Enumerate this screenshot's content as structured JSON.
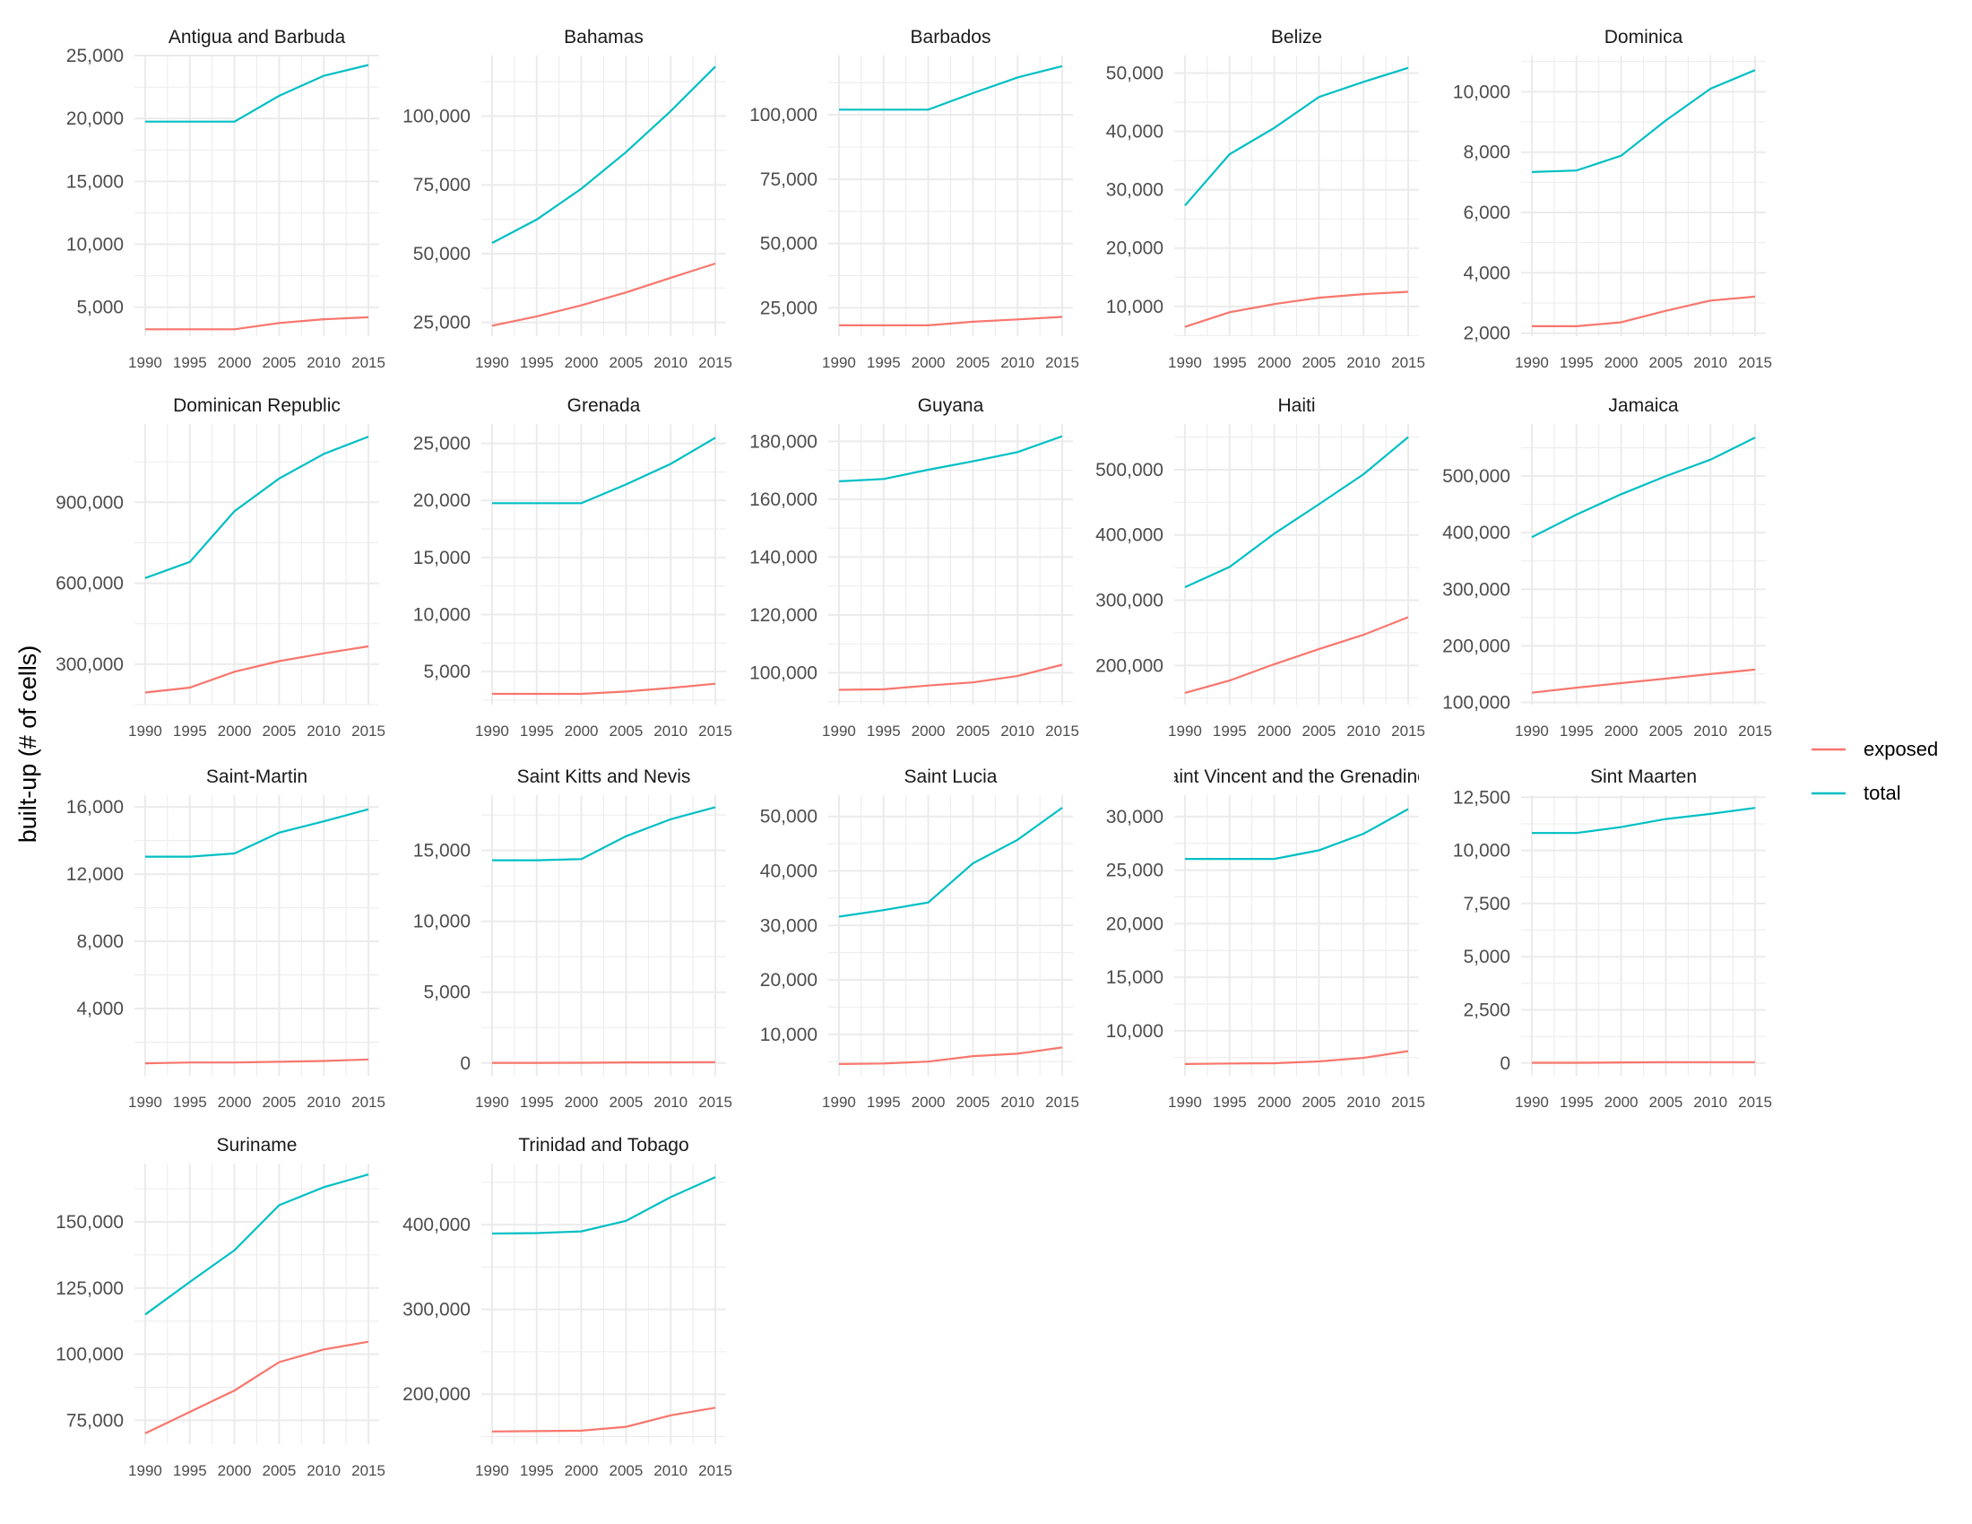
{
  "chart_data": {
    "type": "line",
    "ylabel": "built-up (# of cells)",
    "x": [
      1990,
      1995,
      2000,
      2005,
      2010,
      2015
    ],
    "x_ticks": [
      "1990",
      "1995",
      "2000",
      "2005",
      "2010",
      "2015"
    ],
    "legend": {
      "placement": "right",
      "entries": [
        {
          "name": "exposed",
          "color": "#F8766D"
        },
        {
          "name": "total",
          "color": "#00BFC4"
        }
      ]
    },
    "panels": [
      {
        "title": "Antigua and Barbuda",
        "ylim": [
          2700,
          25000
        ],
        "y_ticks": [
          5000,
          10000,
          15000,
          20000,
          25000
        ],
        "y_tick_labels": [
          "5,000",
          "10,000",
          "15,000",
          "20,000",
          "25,000"
        ],
        "series": [
          {
            "name": "exposed",
            "values": [
              3250,
              3250,
              3250,
              3750,
              4050,
              4200
            ]
          },
          {
            "name": "total",
            "values": [
              19750,
              19750,
              19750,
              21800,
              23400,
              24250
            ]
          }
        ]
      },
      {
        "title": "Bahamas",
        "ylim": [
          20000,
          122000
        ],
        "y_ticks": [
          25000,
          50000,
          75000,
          100000
        ],
        "y_tick_labels": [
          "25,000",
          "50,000",
          "75,000",
          "100,000"
        ],
        "series": [
          {
            "name": "exposed",
            "values": [
              23800,
              27200,
              31200,
              35900,
              41200,
              46400
            ]
          },
          {
            "name": "total",
            "values": [
              53900,
              62400,
              73600,
              86900,
              101800,
              118000
            ]
          }
        ]
      },
      {
        "title": "Barbados",
        "ylim": [
          14000,
          123000
        ],
        "y_ticks": [
          25000,
          50000,
          75000,
          100000
        ],
        "y_tick_labels": [
          "25,000",
          "50,000",
          "75,000",
          "100,000"
        ],
        "series": [
          {
            "name": "exposed",
            "values": [
              18200,
              18200,
              18200,
              19600,
              20500,
              21500
            ]
          },
          {
            "name": "total",
            "values": [
              102000,
              102000,
              102000,
              108400,
              114500,
              118900
            ]
          }
        ]
      },
      {
        "title": "Belize",
        "ylim": [
          4900,
          53000
        ],
        "y_ticks": [
          10000,
          20000,
          30000,
          40000,
          50000
        ],
        "y_tick_labels": [
          "10,000",
          "20,000",
          "30,000",
          "40,000",
          "50,000"
        ],
        "series": [
          {
            "name": "exposed",
            "values": [
              6500,
              9000,
              10400,
              11500,
              12100,
              12500
            ]
          },
          {
            "name": "total",
            "values": [
              27300,
              36100,
              40600,
              45900,
              48500,
              50900
            ]
          }
        ]
      },
      {
        "title": "Dominica",
        "ylim": [
          1900,
          11200
        ],
        "y_ticks": [
          2000,
          4000,
          6000,
          8000,
          10000
        ],
        "y_tick_labels": [
          "2,000",
          "4,000",
          "6,000",
          "8,000",
          "10,000"
        ],
        "series": [
          {
            "name": "exposed",
            "values": [
              2230,
              2230,
              2360,
              2740,
              3080,
              3210
            ]
          },
          {
            "name": "total",
            "values": [
              7340,
              7390,
              7880,
              9050,
              10100,
              10720
            ]
          }
        ]
      },
      {
        "title": "Dominican Republic",
        "ylim": [
          150000,
          1190000
        ],
        "y_ticks": [
          300000,
          600000,
          900000
        ],
        "y_tick_labels": [
          "300,000",
          "600,000",
          "900,000"
        ],
        "series": [
          {
            "name": "exposed",
            "values": [
              195000,
              213000,
              272000,
              311000,
              340000,
              366000
            ]
          },
          {
            "name": "total",
            "values": [
              619000,
              679000,
              867000,
              988000,
              1079000,
              1143000
            ]
          }
        ]
      },
      {
        "title": "Grenada",
        "ylim": [
          2100,
          26700
        ],
        "y_ticks": [
          5000,
          10000,
          15000,
          20000,
          25000
        ],
        "y_tick_labels": [
          "5,000",
          "10,000",
          "15,000",
          "20,000",
          "25,000"
        ],
        "series": [
          {
            "name": "exposed",
            "values": [
              3040,
              3040,
              3040,
              3250,
              3560,
              3930
            ]
          },
          {
            "name": "total",
            "values": [
              19760,
              19760,
              19760,
              21400,
              23200,
              25500
            ]
          }
        ]
      },
      {
        "title": "Guyana",
        "ylim": [
          89000,
          186000
        ],
        "y_ticks": [
          100000,
          120000,
          140000,
          160000,
          180000
        ],
        "y_tick_labels": [
          "100,000",
          "120,000",
          "140,000",
          "160,000",
          "180,000"
        ],
        "series": [
          {
            "name": "exposed",
            "values": [
              94100,
              94300,
              95600,
              96700,
              98900,
              102800
            ]
          },
          {
            "name": "total",
            "values": [
              166200,
              167000,
              170200,
              173100,
              176300,
              181800
            ]
          }
        ]
      },
      {
        "title": "Haiti",
        "ylim": [
          140000,
          570000
        ],
        "y_ticks": [
          200000,
          300000,
          400000,
          500000
        ],
        "y_tick_labels": [
          "200,000",
          "300,000",
          "400,000",
          "500,000"
        ],
        "series": [
          {
            "name": "exposed",
            "values": [
              158000,
              177000,
              202000,
              225000,
              247000,
              274000
            ]
          },
          {
            "name": "total",
            "values": [
              320000,
              351000,
              402000,
              447000,
              493000,
              550000
            ]
          }
        ]
      },
      {
        "title": "Jamaica",
        "ylim": [
          96000,
          592000
        ],
        "y_ticks": [
          100000,
          200000,
          300000,
          400000,
          500000
        ],
        "y_tick_labels": [
          "100,000",
          "200,000",
          "300,000",
          "400,000",
          "500,000"
        ],
        "series": [
          {
            "name": "exposed",
            "values": [
              117000,
              126000,
              134000,
              142000,
              150000,
              158000
            ]
          },
          {
            "name": "total",
            "values": [
              392000,
              432000,
              468000,
              500000,
              529000,
              568000
            ]
          }
        ]
      },
      {
        "title": "Saint-Martin",
        "ylim": [
          0,
          16700
        ],
        "y_ticks": [
          4000,
          8000,
          12000,
          16000
        ],
        "y_tick_labels": [
          "4,000",
          "8,000",
          "12,000",
          "16,000"
        ],
        "series": [
          {
            "name": "exposed",
            "values": [
              740,
              790,
              790,
              830,
              880,
              970
            ]
          },
          {
            "name": "total",
            "values": [
              13040,
              13040,
              13230,
              14470,
              15140,
              15860
            ]
          }
        ]
      },
      {
        "title": "Saint Kitts and Nevis",
        "ylim": [
          -900,
          18900
        ],
        "y_ticks": [
          0,
          5000,
          10000,
          15000
        ],
        "y_tick_labels": [
          "0",
          "5,000",
          "10,000",
          "15,000"
        ],
        "series": [
          {
            "name": "exposed",
            "values": [
              10,
              10,
              15,
              40,
              50,
              60
            ]
          },
          {
            "name": "total",
            "values": [
              14310,
              14310,
              14390,
              16000,
              17200,
              18050
            ]
          }
        ]
      },
      {
        "title": "Saint Lucia",
        "ylim": [
          2400,
          53900
        ],
        "y_ticks": [
          10000,
          20000,
          30000,
          40000,
          50000
        ],
        "y_tick_labels": [
          "10,000",
          "20,000",
          "30,000",
          "40,000",
          "50,000"
        ],
        "series": [
          {
            "name": "exposed",
            "values": [
              4550,
              4650,
              5000,
              6000,
              6450,
              7600
            ]
          },
          {
            "name": "total",
            "values": [
              31600,
              32800,
              34200,
              41400,
              45700,
              51600
            ]
          }
        ]
      },
      {
        "title": "Saint Vincent and the Grenadines",
        "ylim": [
          5800,
          32000
        ],
        "y_ticks": [
          10000,
          15000,
          20000,
          25000,
          30000
        ],
        "y_tick_labels": [
          "10,000",
          "15,000",
          "20,000",
          "25,000",
          "30,000"
        ],
        "series": [
          {
            "name": "exposed",
            "values": [
              6900,
              6950,
              6970,
              7140,
              7470,
              8100
            ]
          },
          {
            "name": "total",
            "values": [
              26050,
              26050,
              26050,
              26850,
              28400,
              30700
            ]
          }
        ]
      },
      {
        "title": "Sint Maarten",
        "ylim": [
          -600,
          12600
        ],
        "y_ticks": [
          0,
          2500,
          5000,
          7500,
          10000,
          12500
        ],
        "y_tick_labels": [
          "0",
          "2,500",
          "5,000",
          "7,500",
          "10,000",
          "12,500"
        ],
        "series": [
          {
            "name": "exposed",
            "values": [
              10,
              10,
              30,
              40,
              40,
              40
            ]
          },
          {
            "name": "total",
            "values": [
              10820,
              10820,
              11100,
              11480,
              11720,
              12000
            ]
          }
        ]
      },
      {
        "title": "Suriname",
        "ylim": [
          66000,
          172000
        ],
        "y_ticks": [
          75000,
          100000,
          125000,
          150000
        ],
        "y_tick_labels": [
          "75,000",
          "100,000",
          "125,000",
          "150,000"
        ],
        "series": [
          {
            "name": "exposed",
            "values": [
              70100,
              78200,
              86300,
              97000,
              101800,
              104700
            ]
          },
          {
            "name": "total",
            "values": [
              115000,
              127300,
              139300,
              156300,
              163100,
              167900
            ]
          }
        ]
      },
      {
        "title": "Trinidad and Tobago",
        "ylim": [
          141000,
          472000
        ],
        "y_ticks": [
          200000,
          300000,
          400000
        ],
        "y_tick_labels": [
          "200,000",
          "300,000",
          "400,000"
        ],
        "series": [
          {
            "name": "exposed",
            "values": [
              156000,
              156400,
              157000,
              161500,
              175000,
              184000
            ]
          },
          {
            "name": "total",
            "values": [
              389500,
              390000,
              392000,
              404500,
              432400,
              456000
            ]
          }
        ]
      }
    ]
  }
}
